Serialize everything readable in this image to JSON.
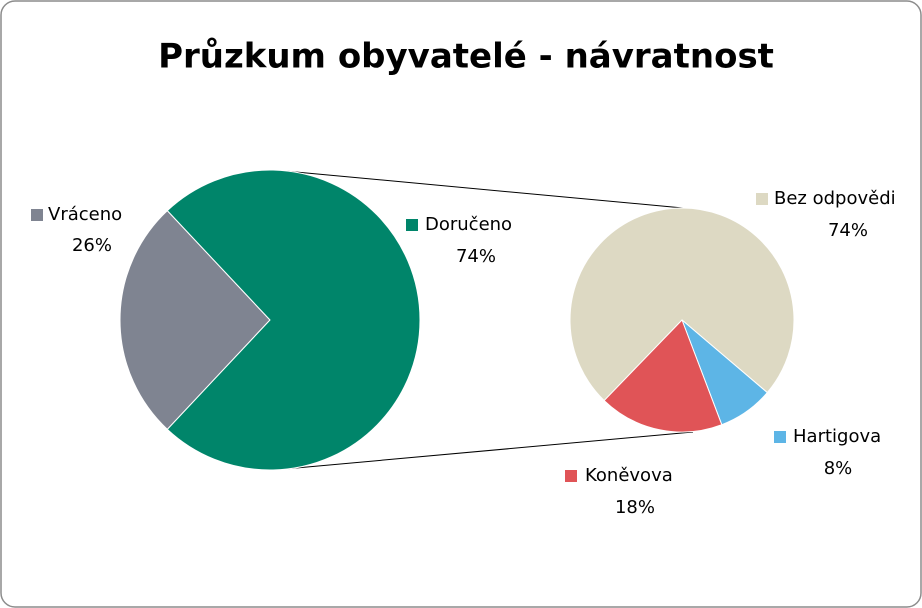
{
  "chart_data": [
    {
      "type": "pie",
      "title": "Průzkum obyvatelé - návratnost",
      "categories": [
        "Vráceno",
        "Doručeno"
      ],
      "values": [
        26,
        74
      ],
      "value_labels": [
        "26%",
        "74%"
      ],
      "colors": [
        "#7f8491",
        "#00856a"
      ]
    },
    {
      "type": "pie",
      "categories": [
        "Bez odpovědi",
        "Hartigova",
        "Koněvova"
      ],
      "values": [
        74,
        8,
        18
      ],
      "value_labels": [
        "74%",
        "8%",
        "18%"
      ],
      "colors": [
        "#ddd9c3",
        "#5db5e6",
        "#e05457"
      ]
    }
  ]
}
